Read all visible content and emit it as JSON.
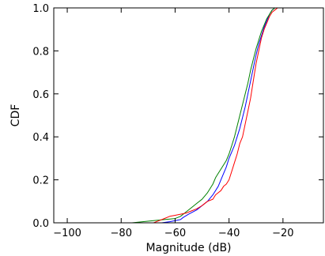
{
  "chart_data": {
    "type": "line",
    "title": "",
    "xlabel": "Magnitude (dB)",
    "ylabel": "CDF",
    "xlim": [
      -105,
      -5
    ],
    "ylim": [
      0.0,
      1.0
    ],
    "xticks": [
      -100,
      -80,
      -60,
      -40,
      -20
    ],
    "yticks": [
      0.0,
      0.2,
      0.4,
      0.6,
      0.8,
      1.0
    ],
    "xtick_labels": [
      "−100",
      "−80",
      "−60",
      "−40",
      "−20"
    ],
    "ytick_labels": [
      "0.0",
      "0.2",
      "0.4",
      "0.6",
      "0.8",
      "1.0"
    ],
    "grid": false,
    "series": [
      {
        "color": "#0000ff",
        "points": [
          [
            -65,
            0
          ],
          [
            -62,
            0.005
          ],
          [
            -60,
            0.01
          ],
          [
            -58,
            0.015
          ],
          [
            -57,
            0.025
          ],
          [
            -55,
            0.04
          ],
          [
            -52,
            0.06
          ],
          [
            -50,
            0.08
          ],
          [
            -48,
            0.1
          ],
          [
            -46,
            0.13
          ],
          [
            -44,
            0.17
          ],
          [
            -43,
            0.2
          ],
          [
            -42,
            0.23
          ],
          [
            -41,
            0.26
          ],
          [
            -40,
            0.3
          ],
          [
            -39,
            0.33
          ],
          [
            -38,
            0.36
          ],
          [
            -37,
            0.4
          ],
          [
            -36,
            0.44
          ],
          [
            -35,
            0.49
          ],
          [
            -34,
            0.54
          ],
          [
            -33,
            0.6
          ],
          [
            -32,
            0.66
          ],
          [
            -31,
            0.72
          ],
          [
            -30,
            0.78
          ],
          [
            -29,
            0.83
          ],
          [
            -28,
            0.87
          ],
          [
            -27,
            0.91
          ],
          [
            -26,
            0.94
          ],
          [
            -25,
            0.97
          ],
          [
            -24,
            0.99
          ],
          [
            -23,
            1.0
          ],
          [
            -21,
            1.0
          ]
        ]
      },
      {
        "color": "#008000",
        "points": [
          [
            -76,
            0
          ],
          [
            -72,
            0.005
          ],
          [
            -68,
            0.01
          ],
          [
            -64,
            0.015
          ],
          [
            -60,
            0.02
          ],
          [
            -58,
            0.03
          ],
          [
            -56,
            0.05
          ],
          [
            -54,
            0.07
          ],
          [
            -52,
            0.09
          ],
          [
            -50,
            0.11
          ],
          [
            -48,
            0.14
          ],
          [
            -46,
            0.18
          ],
          [
            -45,
            0.21
          ],
          [
            -44,
            0.23
          ],
          [
            -43,
            0.25
          ],
          [
            -42,
            0.27
          ],
          [
            -41,
            0.29
          ],
          [
            -40,
            0.32
          ],
          [
            -39,
            0.36
          ],
          [
            -38,
            0.4
          ],
          [
            -37,
            0.45
          ],
          [
            -36,
            0.5
          ],
          [
            -35,
            0.55
          ],
          [
            -34,
            0.6
          ],
          [
            -33,
            0.65
          ],
          [
            -32,
            0.71
          ],
          [
            -31,
            0.76
          ],
          [
            -30,
            0.81
          ],
          [
            -29,
            0.85
          ],
          [
            -28,
            0.89
          ],
          [
            -27,
            0.92
          ],
          [
            -26,
            0.95
          ],
          [
            -25,
            0.97
          ],
          [
            -24,
            0.99
          ],
          [
            -23,
            1.0
          ],
          [
            -21,
            1.0
          ]
        ]
      },
      {
        "color": "#ff0000",
        "points": [
          [
            -68,
            0
          ],
          [
            -66,
            0.01
          ],
          [
            -64,
            0.02
          ],
          [
            -62,
            0.03
          ],
          [
            -60,
            0.035
          ],
          [
            -58,
            0.04
          ],
          [
            -56,
            0.045
          ],
          [
            -54,
            0.055
          ],
          [
            -52,
            0.065
          ],
          [
            -50,
            0.08
          ],
          [
            -48,
            0.1
          ],
          [
            -46,
            0.11
          ],
          [
            -45,
            0.13
          ],
          [
            -44,
            0.14
          ],
          [
            -43,
            0.15
          ],
          [
            -42,
            0.17
          ],
          [
            -41,
            0.18
          ],
          [
            -40,
            0.2
          ],
          [
            -39,
            0.24
          ],
          [
            -38,
            0.28
          ],
          [
            -37,
            0.32
          ],
          [
            -36,
            0.37
          ],
          [
            -35,
            0.4
          ],
          [
            -34,
            0.46
          ],
          [
            -33,
            0.52
          ],
          [
            -32,
            0.58
          ],
          [
            -31,
            0.66
          ],
          [
            -30,
            0.74
          ],
          [
            -29,
            0.8
          ],
          [
            -28,
            0.86
          ],
          [
            -27,
            0.9
          ],
          [
            -26,
            0.93
          ],
          [
            -25,
            0.96
          ],
          [
            -24,
            0.98
          ],
          [
            -23,
            0.99
          ],
          [
            -22,
            1.0
          ],
          [
            -21,
            1.0
          ]
        ]
      }
    ]
  }
}
